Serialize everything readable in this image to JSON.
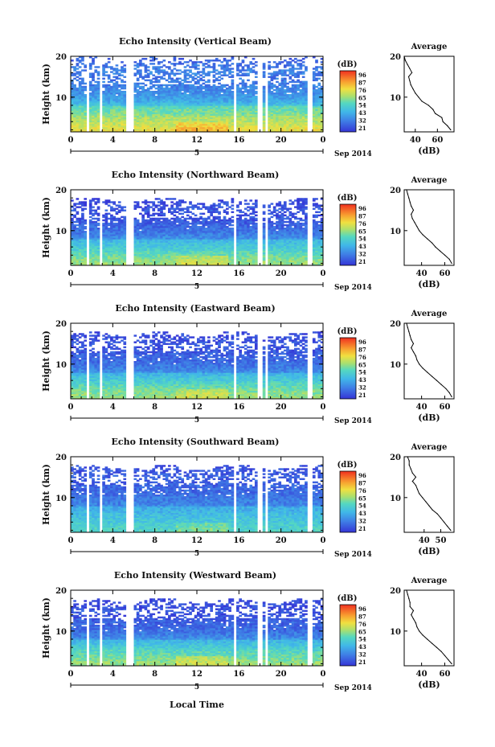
{
  "page": {
    "height_label": "Height (km)",
    "colorbar_unit": "(dB)",
    "colorbar_ticks": [
      "96",
      "87",
      "76",
      "65",
      "54",
      "43",
      "32",
      "21"
    ],
    "average_title": "Average",
    "average_xlabel": "(dB)",
    "x_ticks": [
      "0",
      "4",
      "8",
      "12",
      "16",
      "20",
      "0"
    ],
    "date_day": "5",
    "date_label": "Sep 2014",
    "local_time_label": "Local Time"
  },
  "chart_data": [
    {
      "type": "heatmap",
      "title": "Echo Intensity (Vertical Beam)",
      "xlim": [
        0,
        24
      ],
      "ylim": [
        1.5,
        20
      ],
      "y_ticks": [
        "10",
        "20"
      ],
      "colorbar_range": [
        21,
        96
      ],
      "profile_xlim": [
        30,
        75
      ],
      "profile_ticks": [
        "40",
        "60"
      ],
      "profile": [
        [
          2,
          72
        ],
        [
          3,
          69
        ],
        [
          4,
          65
        ],
        [
          5,
          64
        ],
        [
          6,
          58
        ],
        [
          7,
          56
        ],
        [
          8,
          52
        ],
        [
          9,
          46
        ],
        [
          10,
          43
        ],
        [
          11,
          40
        ],
        [
          12,
          38
        ],
        [
          13,
          36
        ],
        [
          14,
          35
        ],
        [
          15,
          34
        ],
        [
          16,
          37
        ],
        [
          17,
          35
        ],
        [
          18,
          33
        ],
        [
          19,
          31
        ],
        [
          20,
          30
        ]
      ]
    },
    {
      "type": "heatmap",
      "title": "Echo Intensity (Northward Beam)",
      "xlim": [
        0,
        24
      ],
      "ylim": [
        1.5,
        20
      ],
      "y_ticks": [
        "10",
        "20"
      ],
      "colorbar_range": [
        21,
        96
      ],
      "profile_xlim": [
        25,
        68
      ],
      "profile_ticks": [
        "40",
        "60"
      ],
      "profile": [
        [
          2,
          66
        ],
        [
          3,
          64
        ],
        [
          4,
          60
        ],
        [
          5,
          56
        ],
        [
          6,
          52
        ],
        [
          7,
          49
        ],
        [
          8,
          45
        ],
        [
          9,
          41
        ],
        [
          10,
          38
        ],
        [
          11,
          36
        ],
        [
          12,
          34
        ],
        [
          13,
          32
        ],
        [
          14,
          31
        ],
        [
          15,
          33
        ],
        [
          16,
          31
        ],
        [
          17,
          30
        ],
        [
          18,
          29
        ],
        [
          19,
          28
        ],
        [
          20,
          27
        ]
      ]
    },
    {
      "type": "heatmap",
      "title": "Echo Intensity (Eastward Beam)",
      "xlim": [
        0,
        24
      ],
      "ylim": [
        1.5,
        20
      ],
      "y_ticks": [
        "10",
        "20"
      ],
      "colorbar_range": [
        21,
        96
      ],
      "profile_xlim": [
        25,
        68
      ],
      "profile_ticks": [
        "40",
        "60"
      ],
      "profile": [
        [
          2,
          66
        ],
        [
          3,
          64
        ],
        [
          4,
          61
        ],
        [
          5,
          57
        ],
        [
          6,
          53
        ],
        [
          7,
          49
        ],
        [
          8,
          45
        ],
        [
          9,
          41
        ],
        [
          10,
          38
        ],
        [
          11,
          36
        ],
        [
          12,
          35
        ],
        [
          13,
          33
        ],
        [
          14,
          31
        ],
        [
          15,
          33
        ],
        [
          16,
          31
        ],
        [
          17,
          30
        ],
        [
          18,
          29
        ],
        [
          19,
          28
        ],
        [
          20,
          27
        ]
      ]
    },
    {
      "type": "heatmap",
      "title": "Echo Intensity (Southward Beam)",
      "xlim": [
        0,
        24
      ],
      "ylim": [
        1.5,
        20
      ],
      "y_ticks": [
        "10",
        "20"
      ],
      "colorbar_range": [
        21,
        96
      ],
      "profile_xlim": [
        28,
        58
      ],
      "profile_ticks": [
        "40",
        "50"
      ],
      "profile": [
        [
          2,
          56
        ],
        [
          3,
          54
        ],
        [
          4,
          52
        ],
        [
          5,
          50
        ],
        [
          6,
          48
        ],
        [
          7,
          45
        ],
        [
          8,
          43
        ],
        [
          9,
          41
        ],
        [
          10,
          39
        ],
        [
          11,
          37
        ],
        [
          12,
          36
        ],
        [
          13,
          35
        ],
        [
          14,
          33
        ],
        [
          15,
          35
        ],
        [
          16,
          33
        ],
        [
          17,
          32
        ],
        [
          18,
          31
        ],
        [
          19,
          31
        ],
        [
          20,
          30
        ]
      ]
    },
    {
      "type": "heatmap",
      "title": "Echo Intensity (Westward Beam)",
      "xlim": [
        0,
        24
      ],
      "ylim": [
        1.5,
        20
      ],
      "y_ticks": [
        "10",
        "20"
      ],
      "colorbar_range": [
        21,
        96
      ],
      "profile_xlim": [
        25,
        68
      ],
      "profile_ticks": [
        "40",
        "60"
      ],
      "profile": [
        [
          2,
          66
        ],
        [
          3,
          63
        ],
        [
          4,
          60
        ],
        [
          5,
          57
        ],
        [
          6,
          53
        ],
        [
          7,
          49
        ],
        [
          8,
          45
        ],
        [
          9,
          41
        ],
        [
          10,
          38
        ],
        [
          11,
          36
        ],
        [
          12,
          35
        ],
        [
          13,
          33
        ],
        [
          14,
          31
        ],
        [
          15,
          33
        ],
        [
          16,
          30
        ],
        [
          17,
          30
        ],
        [
          18,
          29
        ],
        [
          19,
          28
        ],
        [
          20,
          27
        ]
      ]
    }
  ]
}
